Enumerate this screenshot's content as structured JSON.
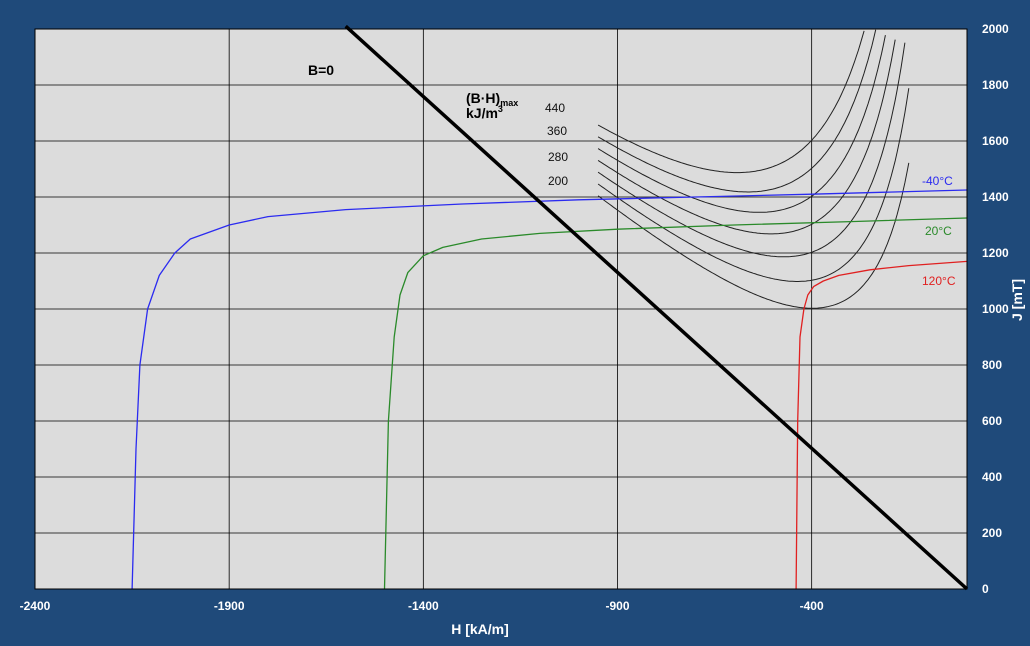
{
  "chart_data": {
    "type": "line",
    "xlabel": "H [kA/m]",
    "ylabel": "J [mT]",
    "xlim": [
      -2400,
      0
    ],
    "ylim": [
      0,
      2000
    ],
    "x_ticks": [
      -2400,
      -1900,
      -1400,
      -900,
      -400
    ],
    "y_ticks": [
      0,
      200,
      400,
      600,
      800,
      1000,
      1200,
      1400,
      1600,
      1800,
      2000
    ],
    "grid": true,
    "legend": "none",
    "series": [
      {
        "name": "-40°C",
        "color": "#2b2bf0",
        "x": [
          -2150,
          -2140,
          -2130,
          -2110,
          -2080,
          -2040,
          -2000,
          -1900,
          -1800,
          -1600,
          -1300,
          -1000,
          -700,
          -400,
          0
        ],
        "y": [
          0,
          500,
          800,
          1000,
          1120,
          1200,
          1250,
          1300,
          1330,
          1355,
          1375,
          1390,
          1400,
          1410,
          1425
        ]
      },
      {
        "name": "20°C",
        "color": "#2a8a2a",
        "x": [
          -1500,
          -1490,
          -1475,
          -1460,
          -1440,
          -1400,
          -1350,
          -1250,
          -1100,
          -900,
          -600,
          -300,
          0
        ],
        "y": [
          0,
          600,
          900,
          1050,
          1130,
          1190,
          1220,
          1250,
          1270,
          1285,
          1300,
          1312,
          1325
        ]
      },
      {
        "name": "120°C",
        "color": "#e02020",
        "x": [
          -440,
          -436,
          -430,
          -420,
          -410,
          -395,
          -370,
          -330,
          -250,
          -150,
          0
        ],
        "y": [
          0,
          600,
          900,
          1000,
          1050,
          1080,
          1100,
          1120,
          1140,
          1155,
          1170
        ]
      },
      {
        "name": "B=0",
        "color": "#000000",
        "x": [
          -1600,
          0
        ],
        "y": [
          2010,
          0
        ]
      }
    ],
    "bh_max_curves": {
      "title": "(B·H)max",
      "unit": "kJ/m3",
      "labels": [
        "440",
        "360",
        "280",
        "200"
      ],
      "iso_values": [
        200,
        240,
        280,
        320,
        360,
        400,
        440
      ]
    },
    "annotations": {
      "b_zero": "B=0",
      "bh_title": "(B·H)",
      "bh_sub": "max",
      "bh_unit": "kJ/m",
      "bh_unit_sup": "3"
    }
  }
}
